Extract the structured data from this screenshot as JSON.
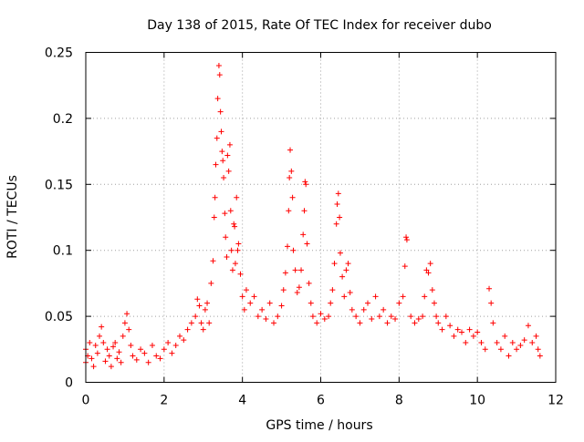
{
  "chart_data": {
    "type": "scatter",
    "title": "Day 138 of 2015, Rate Of TEC Index for receiver dubo",
    "xlabel": "GPS time / hours",
    "ylabel": "ROTI / TECUs",
    "xlim": [
      0,
      12
    ],
    "ylim": [
      0,
      0.25
    ],
    "xticks": [
      0,
      2,
      4,
      6,
      8,
      10,
      12
    ],
    "yticks": [
      0,
      0.05,
      0.1,
      0.15,
      0.2,
      0.25
    ],
    "xtick_labels": [
      "0",
      "2",
      "4",
      "6",
      "8",
      "10",
      "12"
    ],
    "ytick_labels": [
      "0",
      "0.05",
      "0.1",
      "0.15",
      "0.2",
      "0.25"
    ],
    "grid": true,
    "marker": "+",
    "color": "#ff0000",
    "series": [
      {
        "name": "ROTI",
        "points": [
          [
            0.0,
            0.015
          ],
          [
            0.0,
            0.025
          ],
          [
            0.05,
            0.02
          ],
          [
            0.1,
            0.03
          ],
          [
            0.15,
            0.018
          ],
          [
            0.2,
            0.012
          ],
          [
            0.25,
            0.028
          ],
          [
            0.3,
            0.022
          ],
          [
            0.35,
            0.035
          ],
          [
            0.4,
            0.042
          ],
          [
            0.45,
            0.03
          ],
          [
            0.5,
            0.016
          ],
          [
            0.55,
            0.025
          ],
          [
            0.6,
            0.02
          ],
          [
            0.65,
            0.012
          ],
          [
            0.7,
            0.027
          ],
          [
            0.75,
            0.03
          ],
          [
            0.8,
            0.018
          ],
          [
            0.85,
            0.023
          ],
          [
            0.9,
            0.015
          ],
          [
            0.95,
            0.035
          ],
          [
            1.0,
            0.045
          ],
          [
            1.05,
            0.052
          ],
          [
            1.1,
            0.04
          ],
          [
            1.15,
            0.028
          ],
          [
            1.2,
            0.02
          ],
          [
            1.3,
            0.017
          ],
          [
            1.4,
            0.025
          ],
          [
            1.5,
            0.022
          ],
          [
            1.6,
            0.015
          ],
          [
            1.7,
            0.028
          ],
          [
            1.8,
            0.02
          ],
          [
            1.9,
            0.018
          ],
          [
            2.0,
            0.025
          ],
          [
            2.1,
            0.03
          ],
          [
            2.2,
            0.022
          ],
          [
            2.3,
            0.028
          ],
          [
            2.4,
            0.035
          ],
          [
            2.5,
            0.032
          ],
          [
            2.6,
            0.04
          ],
          [
            2.7,
            0.045
          ],
          [
            2.8,
            0.05
          ],
          [
            2.85,
            0.063
          ],
          [
            2.9,
            0.058
          ],
          [
            2.95,
            0.045
          ],
          [
            3.0,
            0.04
          ],
          [
            3.05,
            0.055
          ],
          [
            3.1,
            0.06
          ],
          [
            3.15,
            0.045
          ],
          [
            3.2,
            0.075
          ],
          [
            3.25,
            0.092
          ],
          [
            3.28,
            0.125
          ],
          [
            3.3,
            0.14
          ],
          [
            3.32,
            0.165
          ],
          [
            3.35,
            0.185
          ],
          [
            3.37,
            0.215
          ],
          [
            3.4,
            0.24
          ],
          [
            3.42,
            0.233
          ],
          [
            3.44,
            0.205
          ],
          [
            3.46,
            0.19
          ],
          [
            3.48,
            0.175
          ],
          [
            3.5,
            0.168
          ],
          [
            3.52,
            0.155
          ],
          [
            3.55,
            0.128
          ],
          [
            3.57,
            0.11
          ],
          [
            3.6,
            0.095
          ],
          [
            3.62,
            0.172
          ],
          [
            3.65,
            0.16
          ],
          [
            3.68,
            0.18
          ],
          [
            3.7,
            0.13
          ],
          [
            3.72,
            0.1
          ],
          [
            3.75,
            0.085
          ],
          [
            3.78,
            0.12
          ],
          [
            3.8,
            0.118
          ],
          [
            3.82,
            0.09
          ],
          [
            3.85,
            0.14
          ],
          [
            3.88,
            0.1
          ],
          [
            3.9,
            0.105
          ],
          [
            3.95,
            0.082
          ],
          [
            4.0,
            0.065
          ],
          [
            4.05,
            0.055
          ],
          [
            4.1,
            0.07
          ],
          [
            4.2,
            0.06
          ],
          [
            4.3,
            0.065
          ],
          [
            4.4,
            0.05
          ],
          [
            4.5,
            0.055
          ],
          [
            4.6,
            0.048
          ],
          [
            4.7,
            0.06
          ],
          [
            4.8,
            0.045
          ],
          [
            4.9,
            0.05
          ],
          [
            5.0,
            0.058
          ],
          [
            5.05,
            0.07
          ],
          [
            5.1,
            0.083
          ],
          [
            5.15,
            0.103
          ],
          [
            5.18,
            0.13
          ],
          [
            5.2,
            0.155
          ],
          [
            5.22,
            0.176
          ],
          [
            5.25,
            0.16
          ],
          [
            5.28,
            0.14
          ],
          [
            5.3,
            0.1
          ],
          [
            5.35,
            0.085
          ],
          [
            5.4,
            0.068
          ],
          [
            5.45,
            0.072
          ],
          [
            5.5,
            0.085
          ],
          [
            5.55,
            0.112
          ],
          [
            5.58,
            0.13
          ],
          [
            5.6,
            0.152
          ],
          [
            5.62,
            0.15
          ],
          [
            5.65,
            0.105
          ],
          [
            5.7,
            0.075
          ],
          [
            5.75,
            0.06
          ],
          [
            5.8,
            0.05
          ],
          [
            5.9,
            0.045
          ],
          [
            6.0,
            0.052
          ],
          [
            6.1,
            0.048
          ],
          [
            6.2,
            0.05
          ],
          [
            6.25,
            0.06
          ],
          [
            6.3,
            0.07
          ],
          [
            6.35,
            0.09
          ],
          [
            6.4,
            0.12
          ],
          [
            6.42,
            0.135
          ],
          [
            6.45,
            0.143
          ],
          [
            6.48,
            0.125
          ],
          [
            6.5,
            0.098
          ],
          [
            6.55,
            0.08
          ],
          [
            6.6,
            0.065
          ],
          [
            6.65,
            0.085
          ],
          [
            6.7,
            0.09
          ],
          [
            6.75,
            0.068
          ],
          [
            6.8,
            0.055
          ],
          [
            6.9,
            0.05
          ],
          [
            7.0,
            0.045
          ],
          [
            7.1,
            0.055
          ],
          [
            7.2,
            0.06
          ],
          [
            7.3,
            0.048
          ],
          [
            7.4,
            0.065
          ],
          [
            7.5,
            0.05
          ],
          [
            7.6,
            0.055
          ],
          [
            7.7,
            0.045
          ],
          [
            7.8,
            0.05
          ],
          [
            7.9,
            0.048
          ],
          [
            8.0,
            0.06
          ],
          [
            8.1,
            0.065
          ],
          [
            8.15,
            0.088
          ],
          [
            8.18,
            0.11
          ],
          [
            8.2,
            0.108
          ],
          [
            8.3,
            0.05
          ],
          [
            8.4,
            0.045
          ],
          [
            8.5,
            0.048
          ],
          [
            8.6,
            0.05
          ],
          [
            8.65,
            0.065
          ],
          [
            8.7,
            0.085
          ],
          [
            8.75,
            0.083
          ],
          [
            8.8,
            0.09
          ],
          [
            8.85,
            0.07
          ],
          [
            8.9,
            0.06
          ],
          [
            8.95,
            0.05
          ],
          [
            9.0,
            0.045
          ],
          [
            9.1,
            0.04
          ],
          [
            9.2,
            0.05
          ],
          [
            9.3,
            0.043
          ],
          [
            9.4,
            0.035
          ],
          [
            9.5,
            0.04
          ],
          [
            9.6,
            0.038
          ],
          [
            9.7,
            0.03
          ],
          [
            9.8,
            0.04
          ],
          [
            9.9,
            0.035
          ],
          [
            10.0,
            0.038
          ],
          [
            10.1,
            0.03
          ],
          [
            10.2,
            0.025
          ],
          [
            10.3,
            0.071
          ],
          [
            10.35,
            0.06
          ],
          [
            10.4,
            0.045
          ],
          [
            10.5,
            0.03
          ],
          [
            10.6,
            0.025
          ],
          [
            10.7,
            0.035
          ],
          [
            10.8,
            0.02
          ],
          [
            10.9,
            0.03
          ],
          [
            11.0,
            0.025
          ],
          [
            11.1,
            0.028
          ],
          [
            11.2,
            0.032
          ],
          [
            11.3,
            0.043
          ],
          [
            11.4,
            0.03
          ],
          [
            11.5,
            0.035
          ],
          [
            11.55,
            0.025
          ],
          [
            11.6,
            0.02
          ]
        ]
      }
    ]
  }
}
